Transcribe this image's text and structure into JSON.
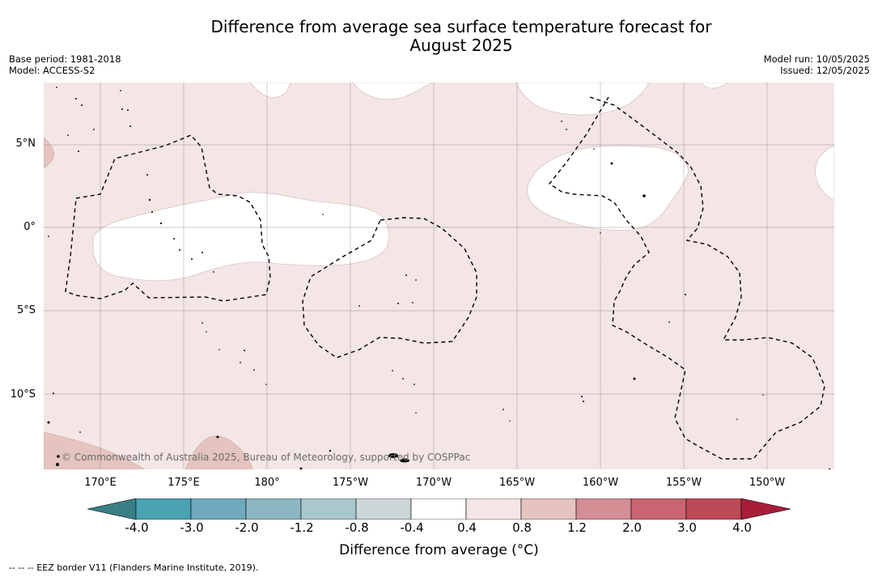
{
  "header": {
    "title_line1": "Difference from average sea surface temperature forecast for",
    "title_line2": "August 2025",
    "base_period": "Base period: 1981-2018",
    "model": "Model: ACCESS-S2",
    "model_run": "Model run: 10/05/2025",
    "issued": "Issued: 12/05/2025"
  },
  "map": {
    "lat_labels": [
      "5°N",
      "0°",
      "5°S",
      "10°S"
    ],
    "lon_labels": [
      "170°E",
      "175°E",
      "180°",
      "175°W",
      "170°W",
      "165°W",
      "160°W",
      "155°W",
      "150°W"
    ],
    "copyright": "© Commonwealth of Australia 2025, Bureau of Meteorology, supported by COSPPac",
    "colors": {
      "background_anomaly": "#f3e6e4",
      "neutral": "#ffffff",
      "warm_small": "#e5c4bf",
      "eez_line": "#000000"
    }
  },
  "colorbar": {
    "tick_labels": [
      "-4.0",
      "-3.0",
      "-2.0",
      "-1.2",
      "-0.8",
      "-0.4",
      "0.4",
      "0.8",
      "1.2",
      "2.0",
      "3.0",
      "4.0"
    ],
    "colors": [
      "#3b7f86",
      "#4aa2b3",
      "#6eaabb",
      "#8cb7c2",
      "#a8c8cb",
      "#cdd6d7",
      "#ffffff",
      "#f4e6e4",
      "#e5c4bf",
      "#d48f94",
      "#c96570",
      "#bd4a57",
      "#a91d3a"
    ],
    "label": "Difference from average (°C)"
  },
  "footnote": "--  --  -- EEZ border V11 (Flanders Marine Institute, 2019)."
}
